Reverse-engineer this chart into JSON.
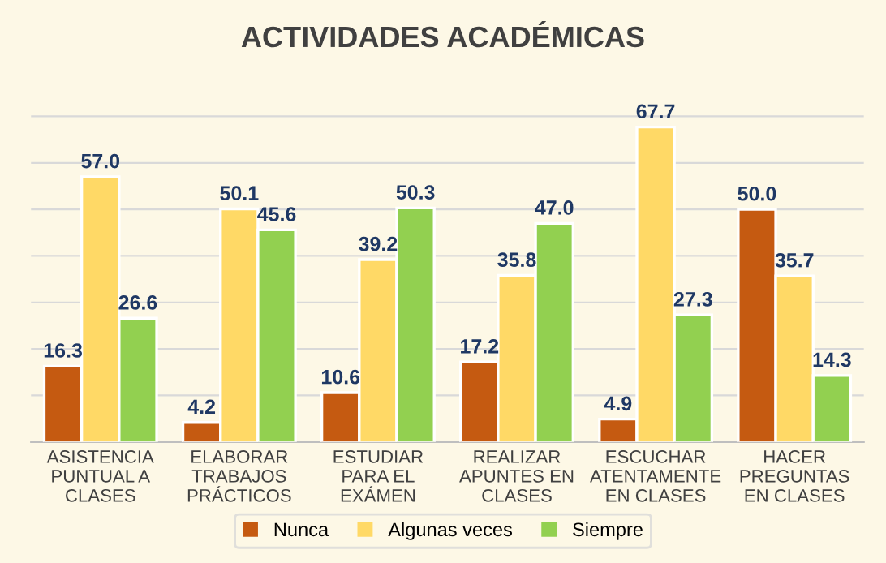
{
  "chart_data": {
    "type": "bar",
    "title": "ACTIVIDADES ACADÉMICAS",
    "categories": [
      "ASISTENCIA\nPUNTUAL A\nCLASES",
      "ELABORAR\nTRABAJOS\nPRÁCTICOS",
      "ESTUDIAR\nPARA EL\nEXÁMEN",
      "REALIZAR\nAPUNTES EN\nCLASES",
      "ESCUCHAR\nATENTAMENTE\nEN CLASES",
      "HACER\nPREGUNTAS\nEN CLASES"
    ],
    "series": [
      {
        "name": "Nunca",
        "color": "#c55a11",
        "values": [
          16.3,
          4.2,
          10.6,
          17.2,
          4.9,
          50.0
        ],
        "value_labels": [
          "16.3",
          "4.2",
          "10.6",
          "17.2",
          "4.9",
          "50.0"
        ]
      },
      {
        "name": "Algunas veces",
        "color": "#ffd966",
        "values": [
          57.0,
          50.1,
          39.2,
          35.8,
          67.7,
          35.7
        ],
        "value_labels": [
          "57.0",
          "50.1",
          "39.2",
          "35.8",
          "67.7",
          "35.7"
        ]
      },
      {
        "name": "Siempre",
        "color": "#92d050",
        "values": [
          26.6,
          45.6,
          50.3,
          47.0,
          27.3,
          14.3
        ],
        "value_labels": [
          "26.6",
          "45.6",
          "50.3",
          "47.0",
          "27.3",
          "14.3"
        ]
      }
    ],
    "tick_labels": "x",
    "grid": "y",
    "legend": "bottom"
  }
}
